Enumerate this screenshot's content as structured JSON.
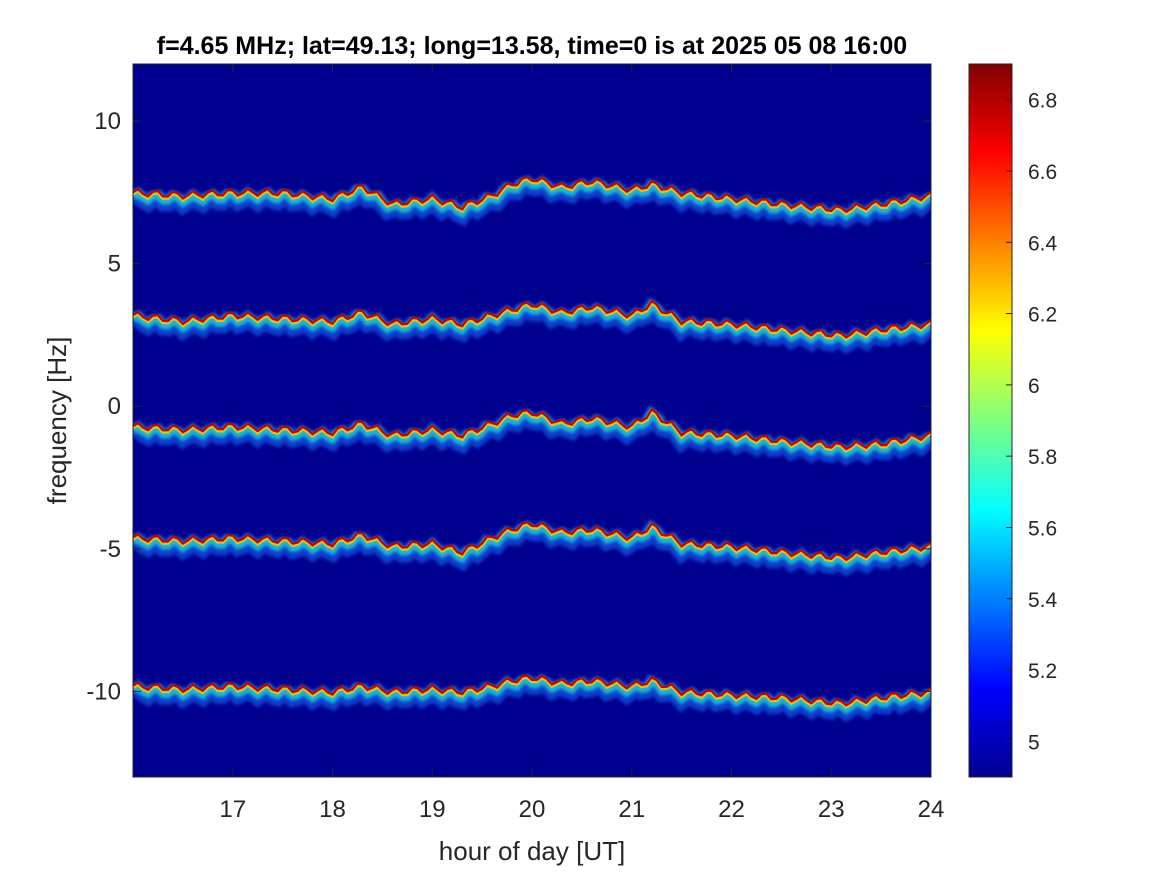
{
  "chart_data": {
    "type": "heatmap",
    "title": "f=4.65 MHz;  lat=49.13; long=13.58, time=0 is at 2025 05 08 16:00",
    "xlabel": "hour of day [UT]",
    "ylabel": "frequency [Hz]",
    "xlim": [
      16,
      24
    ],
    "ylim": [
      -13,
      12
    ],
    "xticks": [
      17,
      18,
      19,
      20,
      21,
      22,
      23,
      24
    ],
    "xtick_labels": [
      "17",
      "18",
      "19",
      "20",
      "21",
      "22",
      "23",
      "24"
    ],
    "yticks": [
      10,
      5,
      0,
      -5,
      -10
    ],
    "ytick_labels": [
      "10",
      "5",
      "0",
      "-5",
      "-10"
    ],
    "colormap": "jet",
    "background_color": "#00008f",
    "colorbar": {
      "range": [
        4.9,
        6.9
      ],
      "ticks": [
        6.8,
        6.6,
        6.4,
        6.2,
        6,
        5.8,
        5.6,
        5.4,
        5.2,
        5
      ],
      "tick_labels": [
        "6.8",
        "6.6",
        "6.4",
        "6.2",
        "6",
        "5.8",
        "5.6",
        "5.4",
        "5.2",
        "5"
      ]
    },
    "series": [
      {
        "x": [
          16.0,
          16.5,
          17.0,
          17.5,
          18.0,
          18.3,
          18.6,
          19.0,
          19.3,
          19.6,
          19.8,
          20.0,
          20.3,
          20.6,
          21.0,
          21.2,
          21.5,
          22.0,
          22.5,
          22.8,
          23.1,
          23.5,
          24.0
        ],
        "y": [
          7.5,
          7.4,
          7.5,
          7.5,
          7.3,
          7.7,
          7.1,
          7.3,
          7.0,
          7.4,
          7.8,
          8.0,
          7.7,
          7.9,
          7.6,
          7.8,
          7.5,
          7.3,
          7.1,
          7.0,
          6.9,
          7.1,
          7.4
        ]
      },
      {
        "x": [
          16.0,
          16.5,
          17.0,
          17.5,
          18.0,
          18.3,
          18.6,
          19.0,
          19.3,
          19.6,
          19.8,
          20.0,
          20.3,
          20.6,
          21.0,
          21.2,
          21.5,
          22.0,
          22.5,
          22.8,
          23.1,
          23.5,
          24.0
        ],
        "y": [
          3.2,
          3.0,
          3.2,
          3.1,
          3.0,
          3.3,
          2.9,
          3.1,
          2.9,
          3.2,
          3.4,
          3.6,
          3.3,
          3.5,
          3.2,
          3.6,
          3.0,
          2.9,
          2.7,
          2.6,
          2.5,
          2.7,
          2.9
        ]
      },
      {
        "x": [
          16.0,
          16.5,
          17.0,
          17.5,
          18.0,
          18.3,
          18.6,
          19.0,
          19.3,
          19.6,
          19.8,
          20.0,
          20.3,
          20.6,
          21.0,
          21.2,
          21.5,
          22.0,
          22.5,
          22.8,
          23.1,
          23.5,
          24.0
        ],
        "y": [
          -0.7,
          -0.8,
          -0.7,
          -0.8,
          -0.9,
          -0.6,
          -1.0,
          -0.8,
          -1.0,
          -0.6,
          -0.3,
          -0.2,
          -0.6,
          -0.4,
          -0.7,
          -0.2,
          -0.9,
          -1.0,
          -1.2,
          -1.3,
          -1.4,
          -1.3,
          -1.0
        ]
      },
      {
        "x": [
          16.0,
          16.5,
          17.0,
          17.5,
          18.0,
          18.3,
          18.6,
          19.0,
          19.3,
          19.6,
          19.8,
          20.0,
          20.3,
          20.6,
          21.0,
          21.2,
          21.5,
          22.0,
          22.5,
          22.8,
          23.1,
          23.5,
          24.0
        ],
        "y": [
          -4.6,
          -4.7,
          -4.6,
          -4.7,
          -4.8,
          -4.5,
          -4.9,
          -4.8,
          -5.1,
          -4.6,
          -4.3,
          -4.1,
          -4.4,
          -4.3,
          -4.6,
          -4.2,
          -4.8,
          -4.9,
          -5.1,
          -5.2,
          -5.3,
          -5.1,
          -4.9
        ]
      },
      {
        "x": [
          16.0,
          16.5,
          17.0,
          17.5,
          18.0,
          18.3,
          18.6,
          19.0,
          19.3,
          19.6,
          19.8,
          20.0,
          20.3,
          20.6,
          21.0,
          21.2,
          21.5,
          22.0,
          22.5,
          22.8,
          23.1,
          23.5,
          24.0
        ],
        "y": [
          -9.8,
          -9.9,
          -9.8,
          -9.9,
          -10.0,
          -9.8,
          -10.0,
          -9.9,
          -10.0,
          -9.8,
          -9.6,
          -9.5,
          -9.7,
          -9.6,
          -9.8,
          -9.6,
          -10.0,
          -10.1,
          -10.2,
          -10.3,
          -10.4,
          -10.2,
          -10.0
        ]
      }
    ]
  }
}
